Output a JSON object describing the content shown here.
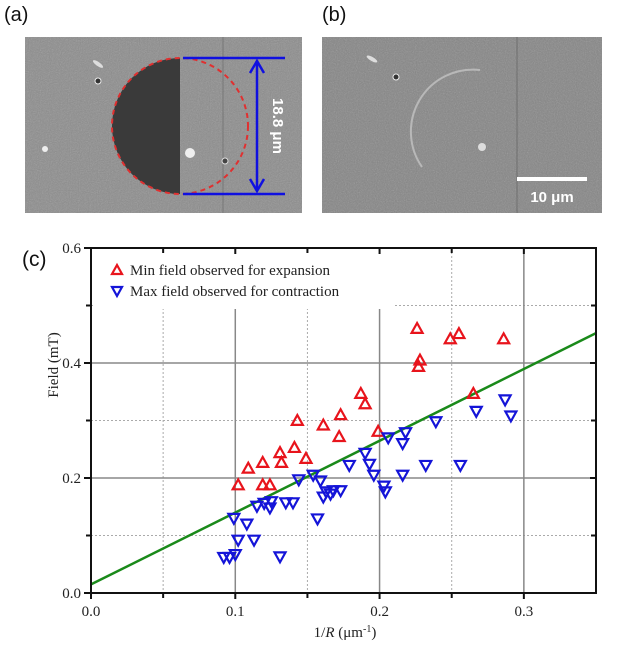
{
  "panels": {
    "a": {
      "label": "(a)",
      "measurement": "18.8 μm",
      "colors": {
        "measure_line": "#1010e0",
        "outline": "#e03030"
      }
    },
    "b": {
      "label": "(b)",
      "scalebar": "10 μm"
    },
    "c": {
      "label": "(c)"
    }
  },
  "chart_data": {
    "type": "scatter",
    "title": "",
    "xlabel": "1/R (μm⁻¹)",
    "xlabel_parts": {
      "pre": "1/",
      "var": "R",
      "unit": " (μm",
      "sup": "-1",
      "post": ")"
    },
    "ylabel": "Field (mT)",
    "xlim": [
      0,
      0.35
    ],
    "ylim": [
      0,
      0.6
    ],
    "xticks": [
      0.0,
      0.1,
      0.2,
      0.3
    ],
    "xtick_labels": [
      "0.0",
      "0.1",
      "0.2",
      "0.3"
    ],
    "yticks": [
      0.0,
      0.2,
      0.4,
      0.6
    ],
    "ytick_labels": [
      "0.0",
      "0.2",
      "0.4",
      "0.6"
    ],
    "minor_grid_x": [
      0.05,
      0.15,
      0.25
    ],
    "minor_grid_y": [
      0.1,
      0.3,
      0.5
    ],
    "grid": true,
    "legend_position": "top-left",
    "series": [
      {
        "name": "Min field observed for expansion",
        "marker": "triangle-up",
        "color": "#e8141c",
        "points": [
          [
            0.226,
            0.46
          ],
          [
            0.249,
            0.442
          ],
          [
            0.255,
            0.451
          ],
          [
            0.286,
            0.442
          ],
          [
            0.228,
            0.405
          ],
          [
            0.227,
            0.394
          ],
          [
            0.265,
            0.347
          ],
          [
            0.187,
            0.347
          ],
          [
            0.19,
            0.329
          ],
          [
            0.173,
            0.31
          ],
          [
            0.143,
            0.3
          ],
          [
            0.161,
            0.292
          ],
          [
            0.172,
            0.272
          ],
          [
            0.199,
            0.281
          ],
          [
            0.141,
            0.253
          ],
          [
            0.131,
            0.244
          ],
          [
            0.149,
            0.234
          ],
          [
            0.132,
            0.227
          ],
          [
            0.119,
            0.227
          ],
          [
            0.109,
            0.217
          ],
          [
            0.102,
            0.188
          ],
          [
            0.119,
            0.188
          ],
          [
            0.124,
            0.188
          ]
        ]
      },
      {
        "name": "Max field observed for contraction",
        "marker": "triangle-down",
        "color": "#1414d8",
        "points": [
          [
            0.287,
            0.336
          ],
          [
            0.267,
            0.316
          ],
          [
            0.291,
            0.308
          ],
          [
            0.239,
            0.298
          ],
          [
            0.218,
            0.279
          ],
          [
            0.206,
            0.27
          ],
          [
            0.216,
            0.26
          ],
          [
            0.19,
            0.243
          ],
          [
            0.193,
            0.224
          ],
          [
            0.179,
            0.222
          ],
          [
            0.232,
            0.222
          ],
          [
            0.256,
            0.222
          ],
          [
            0.196,
            0.205
          ],
          [
            0.216,
            0.205
          ],
          [
            0.154,
            0.205
          ],
          [
            0.144,
            0.197
          ],
          [
            0.159,
            0.195
          ],
          [
            0.203,
            0.186
          ],
          [
            0.204,
            0.176
          ],
          [
            0.173,
            0.178
          ],
          [
            0.163,
            0.176
          ],
          [
            0.168,
            0.178
          ],
          [
            0.166,
            0.172
          ],
          [
            0.161,
            0.167
          ],
          [
            0.14,
            0.157
          ],
          [
            0.135,
            0.157
          ],
          [
            0.125,
            0.159
          ],
          [
            0.12,
            0.156
          ],
          [
            0.115,
            0.151
          ],
          [
            0.124,
            0.148
          ],
          [
            0.099,
            0.13
          ],
          [
            0.157,
            0.129
          ],
          [
            0.108,
            0.12
          ],
          [
            0.102,
            0.092
          ],
          [
            0.113,
            0.092
          ],
          [
            0.1,
            0.067
          ],
          [
            0.092,
            0.062
          ],
          [
            0.096,
            0.062
          ],
          [
            0.131,
            0.063
          ]
        ]
      }
    ],
    "fit_line": {
      "color": "#1a8a1a",
      "points": [
        [
          0.0,
          0.015
        ],
        [
          0.35,
          0.452
        ]
      ]
    }
  }
}
